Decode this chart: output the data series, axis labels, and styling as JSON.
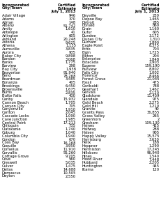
{
  "left_data": [
    [
      "Adair Village",
      "946"
    ],
    [
      "Adams",
      "370"
    ],
    [
      "Adrian",
      "148"
    ],
    [
      "Albany",
      "51,742"
    ],
    [
      "Amity",
      "1,610"
    ],
    [
      "Antelope",
      "41"
    ],
    [
      "Arlington",
      "605"
    ],
    [
      "Ashland",
      "20,248"
    ],
    [
      "Astoria",
      "9,625"
    ],
    [
      "Athena",
      "1,135"
    ],
    [
      "Aumsville",
      "3,835"
    ],
    [
      "Aurora",
      "935"
    ],
    [
      "Baker City",
      "9,898"
    ],
    [
      "Bandon",
      "3,068"
    ],
    [
      "Banks",
      "1,775"
    ],
    [
      "Barview",
      "298"
    ],
    [
      "Bay City",
      "1,938"
    ],
    [
      "Beaverton",
      "91,940"
    ],
    [
      "Bend",
      "78,268"
    ],
    [
      "Boardman",
      "3,485"
    ],
    [
      "Bonanza",
      "405"
    ],
    [
      "Brookings",
      "6,450"
    ],
    [
      "Brownsville",
      "1,675"
    ],
    [
      "Burns",
      "2,835"
    ],
    [
      "Butte Falls",
      "430"
    ],
    [
      "Canby",
      "15,932"
    ],
    [
      "Cannon Beach",
      "1,705"
    ],
    [
      "Canyon City",
      "705"
    ],
    [
      "Canyonville",
      "1,910"
    ],
    [
      "Carlton",
      "2,045"
    ],
    [
      "Cascade Locks",
      "1,090"
    ],
    [
      "Cave Junction",
      "1,985"
    ],
    [
      "Central Point",
      "17,213"
    ],
    [
      "Chiloquin",
      "735"
    ],
    [
      "Clatskanie",
      "1,740"
    ],
    [
      "Coburg",
      "1,040"
    ],
    [
      "Columbia City",
      "1,940"
    ],
    [
      "Condon",
      "670"
    ],
    [
      "Coos Bay",
      "16,168"
    ],
    [
      "Coquille",
      "3,950"
    ],
    [
      "Cornelius",
      "11,910"
    ],
    [
      "Corvallis",
      "55,260"
    ],
    [
      "Cottage Grove",
      "9,705"
    ],
    [
      "Cove",
      "560"
    ],
    [
      "Creswell",
      "5,035"
    ],
    [
      "Culver",
      "1,475"
    ],
    [
      "Dallas",
      "14,688"
    ],
    [
      "Damascus",
      "10,505"
    ],
    [
      "Dayton",
      "2,550"
    ]
  ],
  "right_data": [
    [
      "Dayville",
      "230"
    ],
    [
      "Depoe Bay",
      "1,465"
    ],
    [
      "Detroit",
      "285"
    ],
    [
      "Donald",
      "860"
    ],
    [
      "Drain",
      "1,160"
    ],
    [
      "Dufur",
      "605"
    ],
    [
      "Dundee",
      "3,172"
    ],
    [
      "Dunes City",
      "1,310"
    ],
    [
      "Durham",
      "1,890"
    ],
    [
      "Eagle Point",
      "8,375"
    ],
    [
      "Echo",
      "703"
    ],
    [
      "Elgin",
      "1,725"
    ],
    [
      "Elkton",
      "204"
    ],
    [
      "Enterprise",
      "1,848"
    ],
    [
      "Estacada",
      "2,903"
    ],
    [
      "Eugene",
      "159,190"
    ],
    [
      "Fairview",
      "8,802"
    ],
    [
      "Falls City",
      "1,002"
    ],
    [
      "Florence",
      "8,466"
    ],
    [
      "Forest Grove",
      "21,045"
    ],
    [
      "Fossil",
      "475"
    ],
    [
      "Garibaldi",
      "788"
    ],
    [
      "Gearhart",
      "1,462"
    ],
    [
      "Gervais",
      "2,120"
    ],
    [
      "Gladstone",
      "11,459"
    ],
    [
      "Glendale",
      "975"
    ],
    [
      "Gold Beach",
      "2,275"
    ],
    [
      "Gold Hill",
      "1,210"
    ],
    [
      "Granite",
      "40"
    ],
    [
      "Grants Pass",
      "36,855"
    ],
    [
      "Grass Valley",
      "265"
    ],
    [
      "Greenhorn",
      "2"
    ],
    [
      "Gresham",
      "109,130"
    ],
    [
      "Haines",
      "425"
    ],
    [
      "Halfway",
      "288"
    ],
    [
      "Halsey",
      "905"
    ],
    [
      "Happy Valley",
      "15,575"
    ],
    [
      "Harrisburg",
      "3,630"
    ],
    [
      "Helix",
      "188"
    ],
    [
      "Heppner",
      "1,290"
    ],
    [
      "Hermiston",
      "17,245"
    ],
    [
      "Hillsboro",
      "96,940"
    ],
    [
      "Hines",
      "1,540"
    ],
    [
      "Hood River",
      "7,448"
    ],
    [
      "Hubbard",
      "2,205"
    ],
    [
      "Huntington",
      "445"
    ],
    [
      "Iltama",
      "120"
    ]
  ],
  "font_size": 3.8,
  "header_font_size": 3.9,
  "bg_color": "#ffffff",
  "text_color": "#000000"
}
